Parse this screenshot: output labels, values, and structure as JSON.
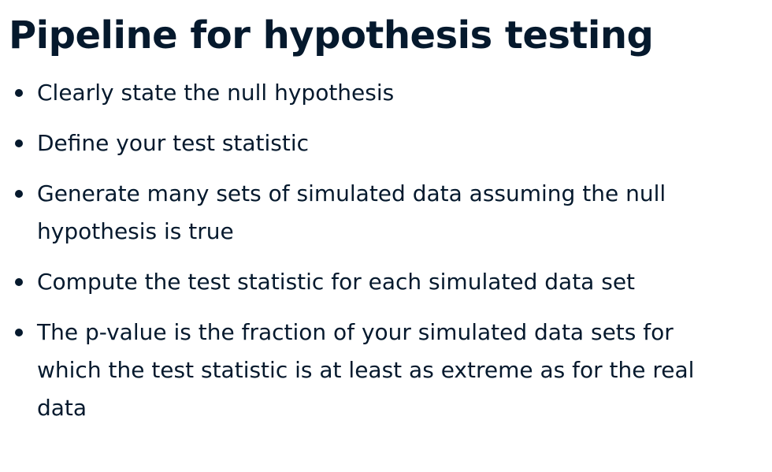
{
  "slide": {
    "title": "Pipeline for hypothesis testing",
    "bullets": [
      "Clearly state the null hypothesis",
      "Define your test statistic",
      "Generate many sets of simulated data assuming the null hypothesis is true",
      "Compute the test statistic for each simulated data set",
      "The p-value is the fraction of your simulated data sets for which the test statistic is at least as extreme as for the real data"
    ]
  },
  "colors": {
    "text": "#05192d",
    "background": "#ffffff"
  }
}
